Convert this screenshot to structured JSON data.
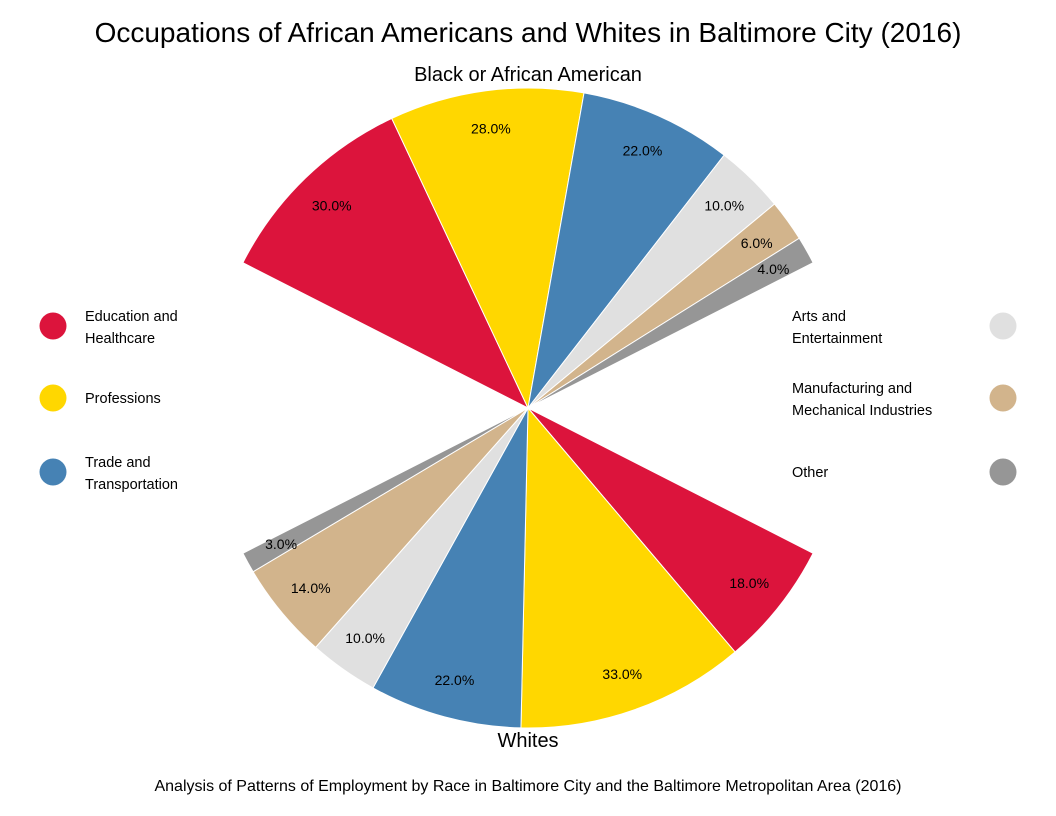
{
  "chart_data": {
    "type": "pie",
    "title": "Occupations of African Americans and Whites in Baltimore City (2016)",
    "caption": "Analysis of Patterns of Employment by Race in Baltimore City and the Baltimore Metropolitan Area (2016)",
    "categories": [
      "Education and Healthcare",
      "Professions",
      "Trade and Transportation",
      "Arts and Entertainment",
      "Manufacturing and Mechanical Industries",
      "Other"
    ],
    "colors": [
      "#DC143C",
      "#FFD700",
      "#4682B4",
      "#E0E0E0",
      "#D2B48C",
      "#969696"
    ],
    "series": [
      {
        "name": "Black or African American",
        "values": [
          30.0,
          28.0,
          22.0,
          10.0,
          6.0,
          4.0
        ],
        "labels": [
          "30.0%",
          "28.0%",
          "22.0%",
          "10.0%",
          "6.0%",
          "4.0%"
        ]
      },
      {
        "name": "Whites",
        "values": [
          18.0,
          33.0,
          22.0,
          10.0,
          14.0,
          3.0
        ],
        "labels": [
          "18.0%",
          "33.0%",
          "22.0%",
          "10.0%",
          "14.0%",
          "3.0%"
        ]
      }
    ],
    "legend": {
      "left": [
        {
          "lines": [
            "Education and",
            "Healthcare"
          ],
          "color": "#DC143C"
        },
        {
          "lines": [
            "Professions"
          ],
          "color": "#FFD700"
        },
        {
          "lines": [
            "Trade and",
            "Transportation"
          ],
          "color": "#4682B4"
        }
      ],
      "right": [
        {
          "lines": [
            "Arts and",
            "Entertainment"
          ],
          "color": "#E0E0E0"
        },
        {
          "lines": [
            "Manufacturing and",
            "Mechanical Industries"
          ],
          "color": "#D2B48C"
        },
        {
          "lines": [
            "Other"
          ],
          "color": "#969696"
        }
      ]
    }
  }
}
